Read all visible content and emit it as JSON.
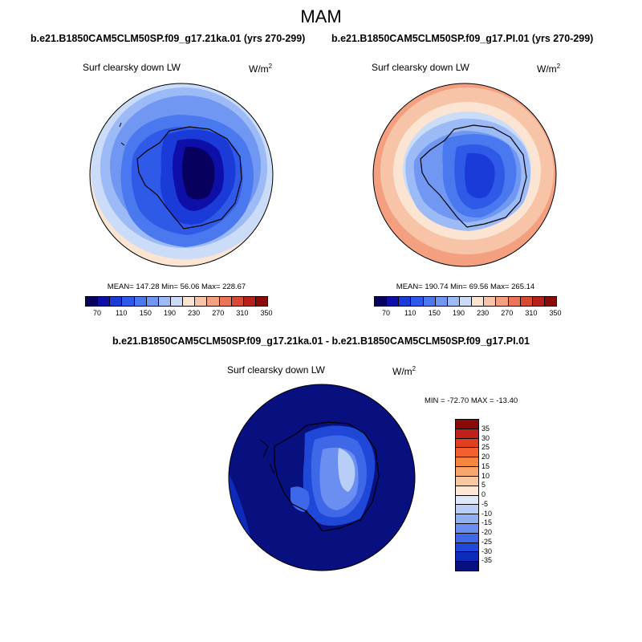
{
  "page": {
    "season": "MAM",
    "diff_title": "b.e21.B1850CAM5CLM50SP.f09_g17.21ka.01 - b.e21.B1850CAM5CLM50SP.f09_g17.PI.01"
  },
  "panels": {
    "left": {
      "title": "b.e21.B1850CAM5CLM50SP.f09_g17.21ka.01 (yrs 270-299)",
      "variable": "Surf clearsky down LW",
      "units": "W/m",
      "units_exp": "2",
      "stats": "MEAN= 147.28  Min=  56.06  Max= 228.67"
    },
    "right": {
      "title": "b.e21.B1850CAM5CLM50SP.f09_g17.PI.01 (yrs 270-299)",
      "variable": "Surf clearsky down LW",
      "units": "W/m",
      "units_exp": "2",
      "stats": "MEAN= 190.74  Min=  69.56  Max= 265.14"
    },
    "diff": {
      "variable": "Surf clearsky down LW",
      "units": "W/m",
      "units_exp": "2",
      "stats": "MIN = -72.70 MAX = -13.40"
    }
  },
  "colorbar_abs": {
    "ticks": [
      "70",
      "110",
      "150",
      "190",
      "230",
      "270",
      "310",
      "350"
    ],
    "colors": [
      "#08005e",
      "#0e0ea8",
      "#1a3bd8",
      "#2f5ae8",
      "#4a78ee",
      "#7098f2",
      "#9cbaf5",
      "#cadcf8",
      "#fbe5d2",
      "#f7c4a8",
      "#f4a080",
      "#ec7558",
      "#d94a32",
      "#b8211a",
      "#8a0a0a"
    ]
  },
  "colorbar_diff": {
    "ticks": [
      "35",
      "30",
      "25",
      "20",
      "15",
      "10",
      "5",
      "0",
      "-5",
      "-10",
      "-15",
      "-20",
      "-25",
      "-30",
      "-35"
    ],
    "colors": [
      "#8a0a0a",
      "#c0201a",
      "#e0401f",
      "#f26030",
      "#f6853f",
      "#f7a76d",
      "#f9c8a3",
      "#fde8d5",
      "#dde8fb",
      "#b8cef6",
      "#8fb0f0",
      "#6a8ff0",
      "#3f68e8",
      "#1f48d8",
      "#0d2bb8",
      "#07107e"
    ]
  }
}
